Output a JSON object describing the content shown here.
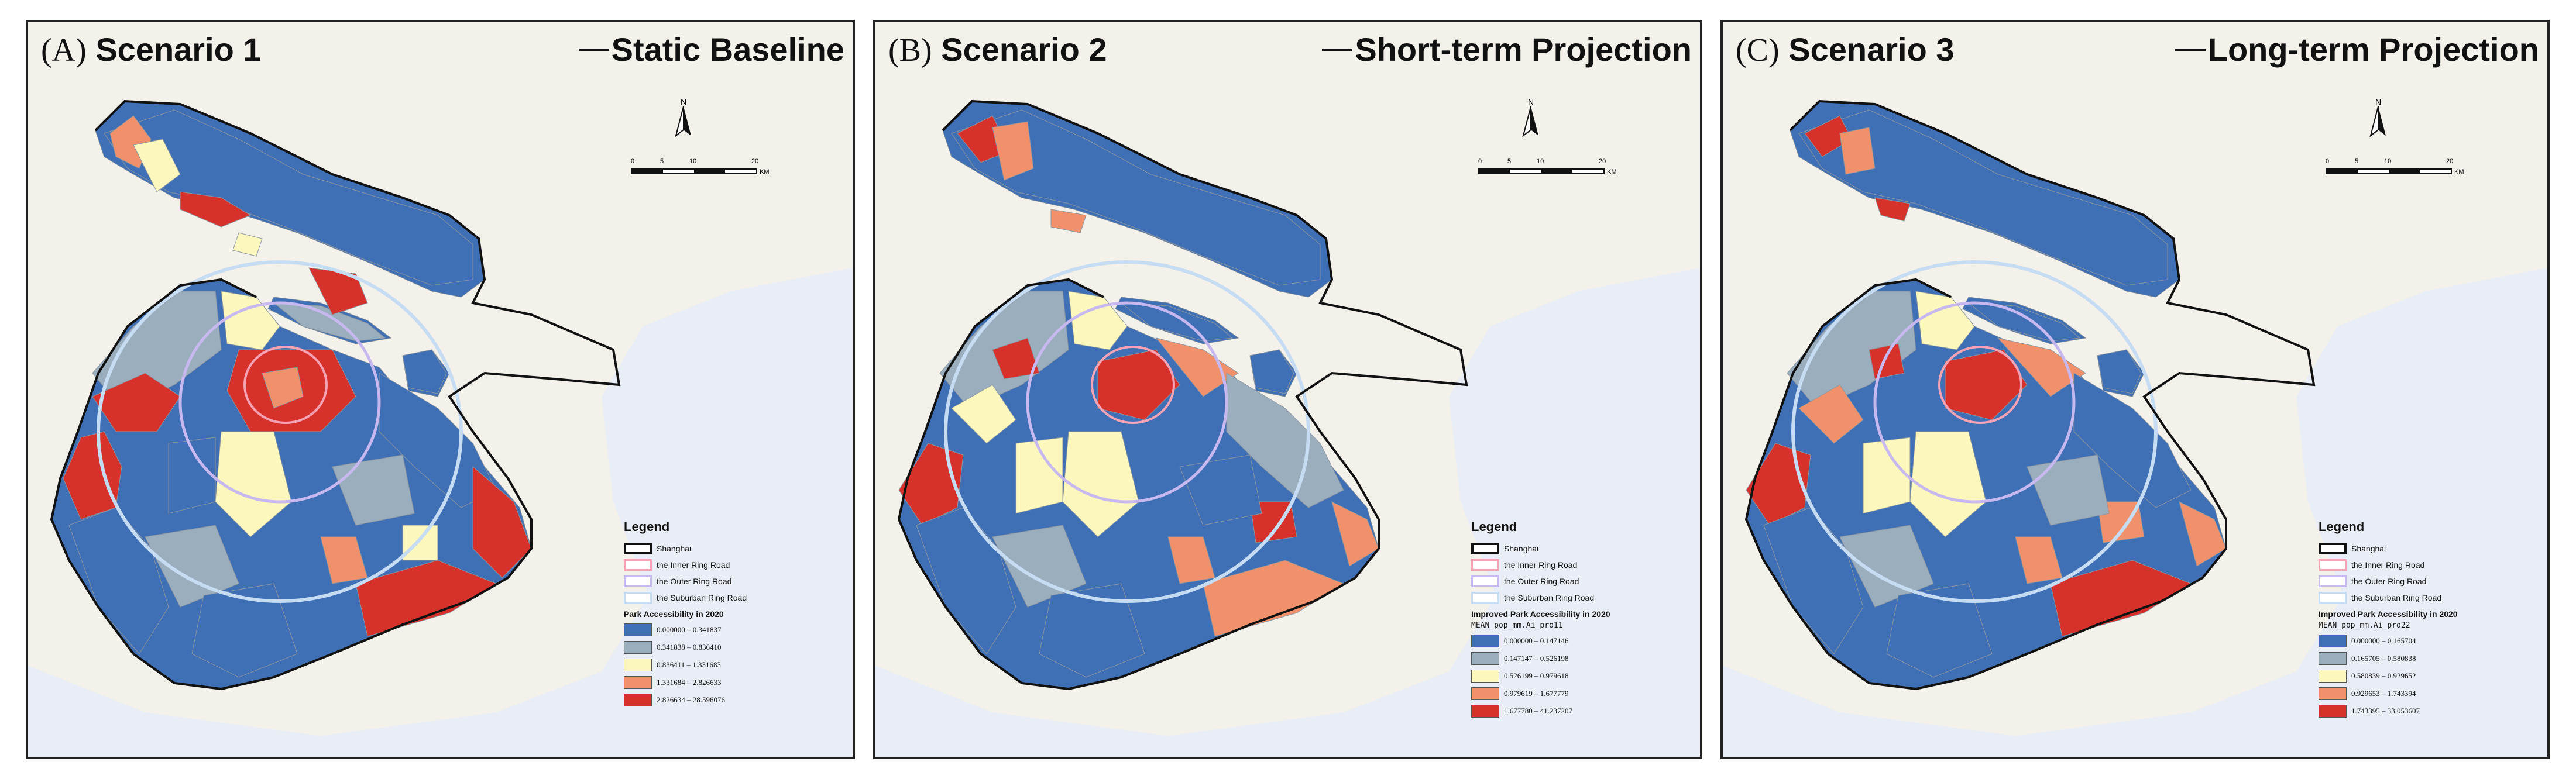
{
  "panels": [
    {
      "id": "a",
      "label_letter": "(A)",
      "label_name": "Scenario 1",
      "subtitle": "Static Baseline",
      "acc_title": "Park Accessibility in 2020",
      "field_name": "",
      "classes": [
        "0.000000 – 0.341837",
        "0.341838 – 0.836410",
        "0.836411 – 1.331683",
        "1.331684 – 2.826633",
        "2.826634 – 28.596076"
      ]
    },
    {
      "id": "b",
      "label_letter": "(B)",
      "label_name": "Scenario 2",
      "subtitle": "Short-term Projection",
      "acc_title": "Improved Park Accessibility in 2020",
      "field_name": "MEAN_pop_mm.Ai_pro11",
      "classes": [
        "0.000000 – 0.147146",
        "0.147147 – 0.526198",
        "0.526199 – 0.979618",
        "0.979619 – 1.677779",
        "1.677780 – 41.237207"
      ]
    },
    {
      "id": "c",
      "label_letter": "(C)",
      "label_name": "Scenario 3",
      "subtitle": "Long-term Projection",
      "acc_title": "Improved Park Accessibility in 2020",
      "field_name": "MEAN_pop_mm.Ai_pro22",
      "classes": [
        "0.000000 – 0.165704",
        "0.165705 – 0.580838",
        "0.580839 – 0.929652",
        "0.929653 – 1.743394",
        "1.743395 – 33.053607"
      ]
    }
  ],
  "legend": {
    "title": "Legend",
    "boundary": "Shanghai",
    "inner_ring": "the Inner Ring Road",
    "outer_ring": "the Outer Ring Road",
    "suburban_ring": "the Suburban Ring Road"
  },
  "north_label": "N",
  "scale": {
    "ticks": [
      "0",
      "5",
      "10",
      "",
      "20"
    ],
    "unit": "KM"
  },
  "colors": {
    "class1": "#3f6fb5",
    "class2": "#9aaebd",
    "class3": "#fbf7bd",
    "class4": "#f0916b",
    "class5": "#d7312b",
    "inner_ring": "#f4a3b5",
    "outer_ring": "#c8b8f0",
    "suburban_ring": "#c6dcf3",
    "water": "#e9eef6",
    "land_outside": "#f3f1ea"
  }
}
